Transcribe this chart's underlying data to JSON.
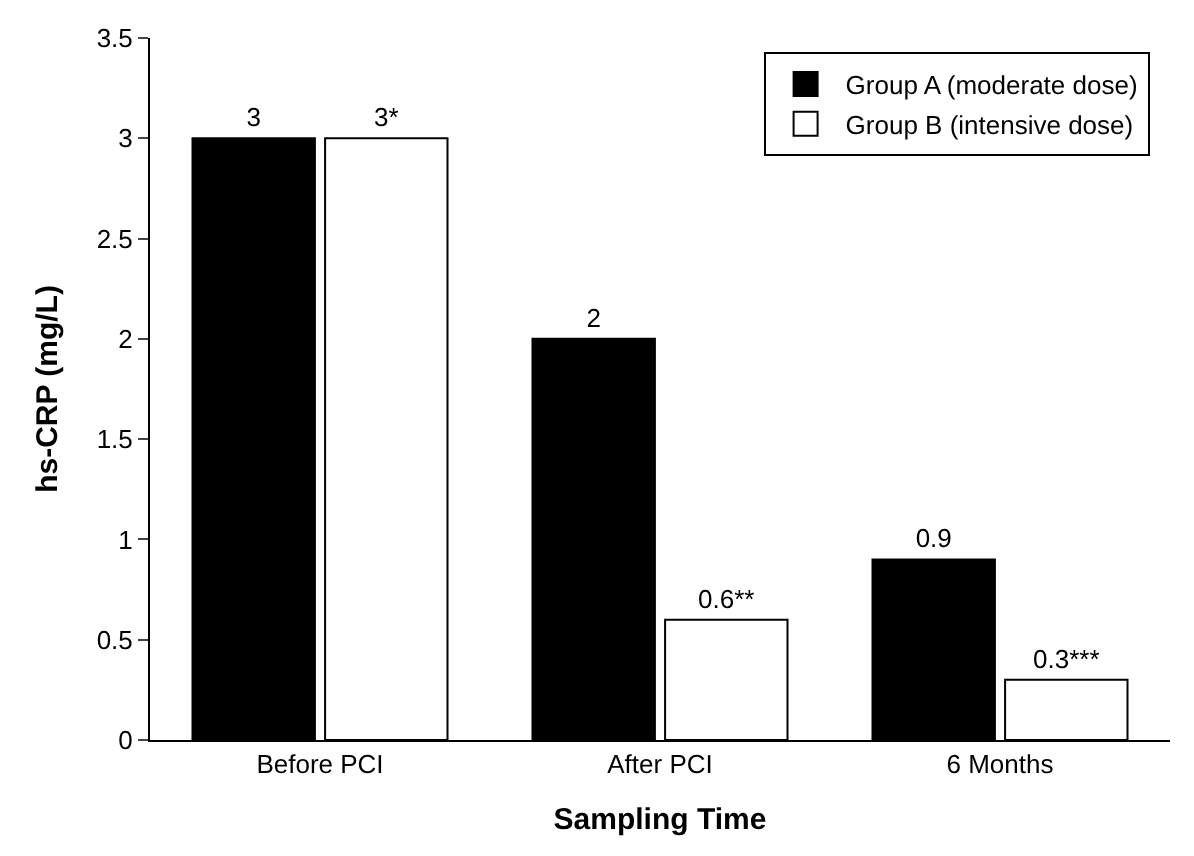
{
  "chart_data": {
    "type": "bar",
    "xlabel": "Sampling Time",
    "ylabel": "hs-CRP (mg/L)",
    "categories": [
      "Before PCI",
      "After PCI",
      "6 Months"
    ],
    "series": [
      {
        "name": "Group A (moderate dose)",
        "color": "#000000",
        "values": [
          3,
          2,
          0.9
        ],
        "value_labels": [
          "3",
          "2",
          "0.9"
        ]
      },
      {
        "name": "Group B (intensive dose)",
        "color": "#ffffff",
        "values": [
          3,
          0.6,
          0.3
        ],
        "value_labels": [
          "3*",
          "0.6**",
          "0.3***"
        ]
      }
    ],
    "ylim": [
      0,
      3.5
    ],
    "yticks": [
      0,
      0.5,
      1,
      1.5,
      2,
      2.5,
      3,
      3.5
    ],
    "legend": "top right"
  }
}
